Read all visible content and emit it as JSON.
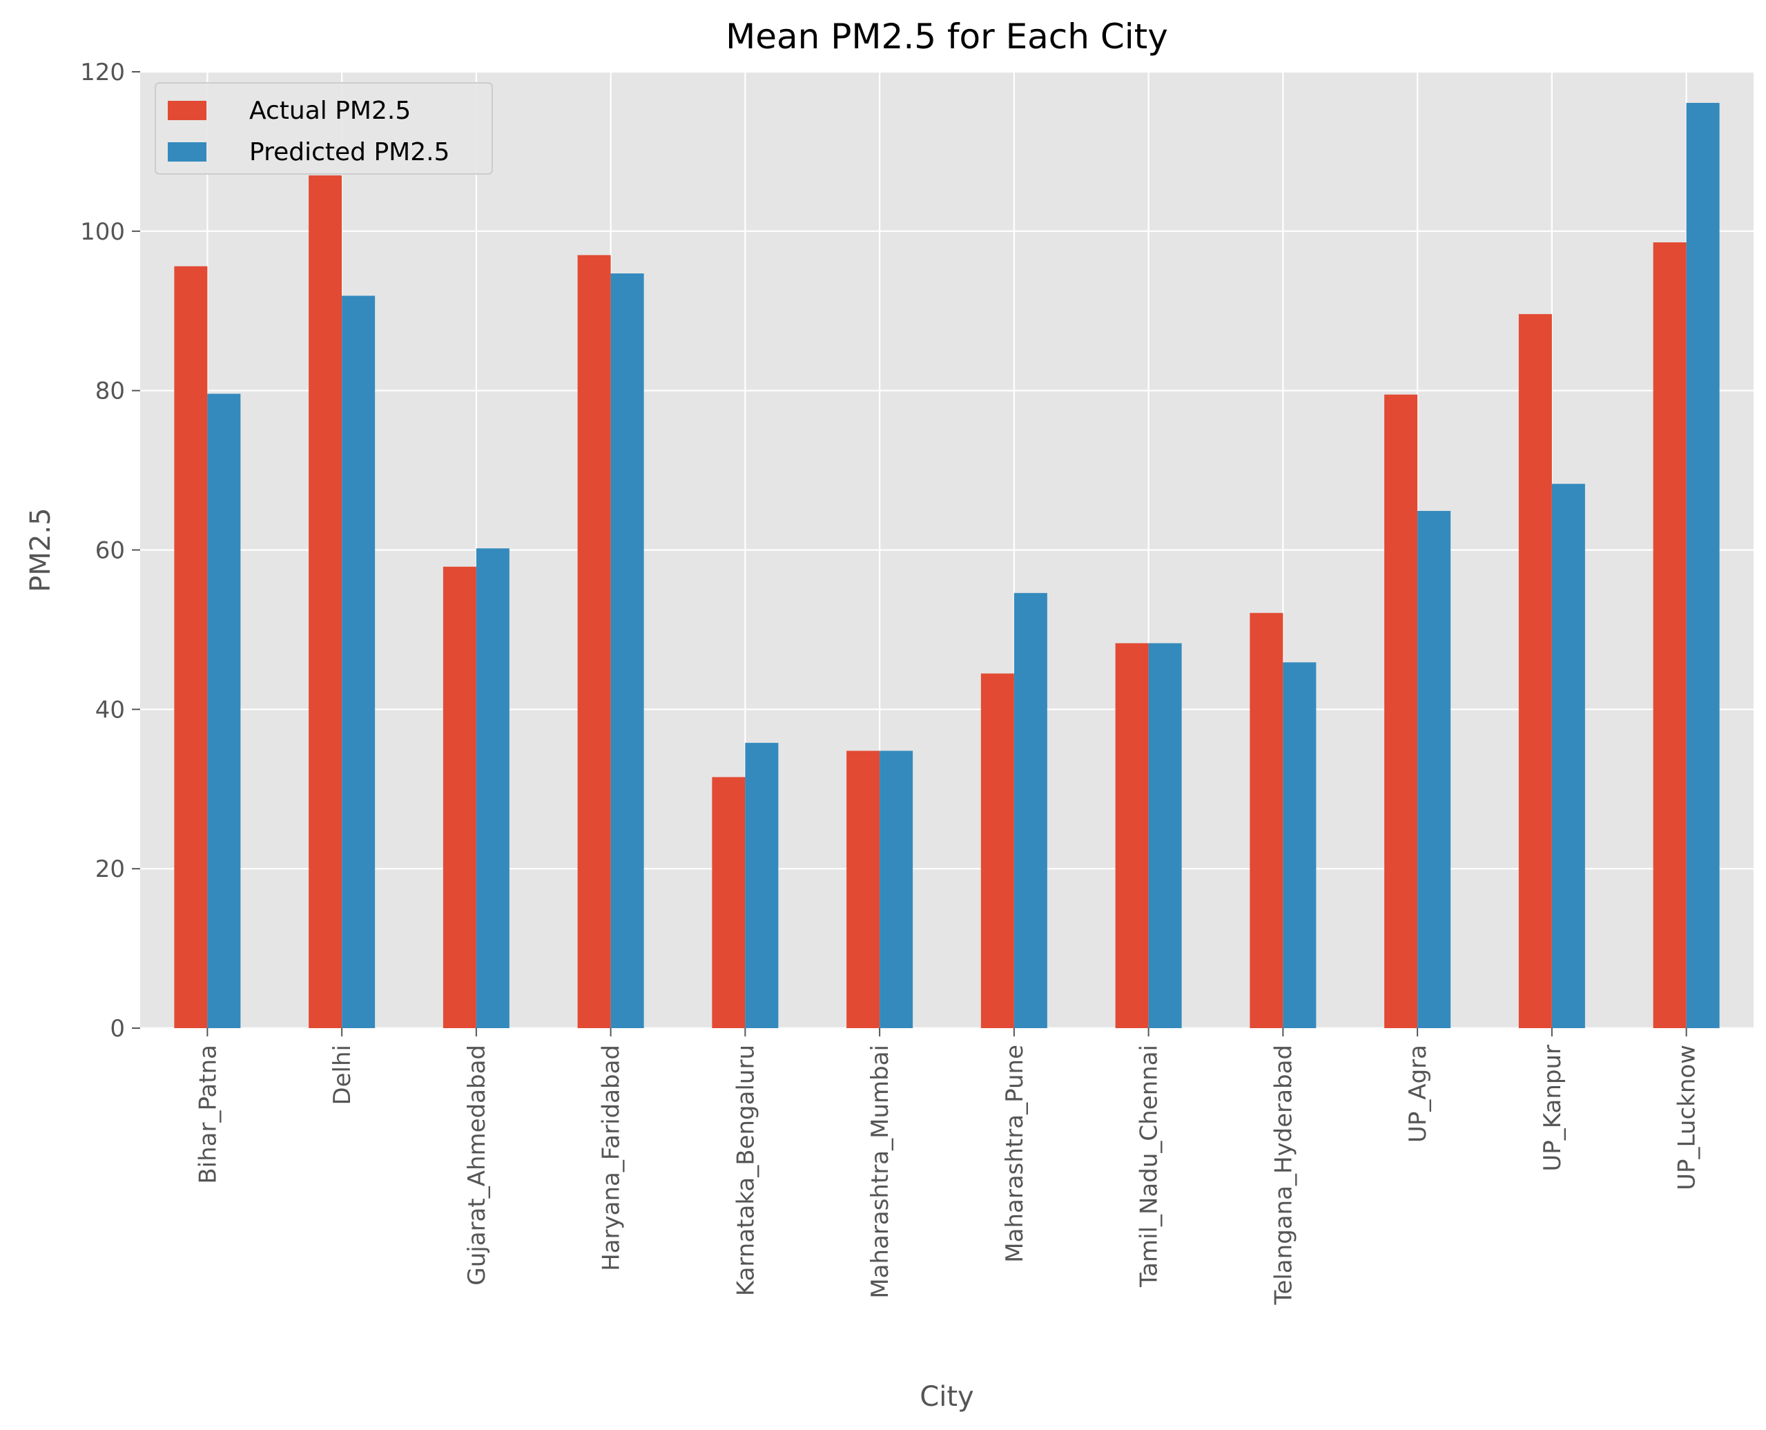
{
  "chart_data": {
    "type": "bar",
    "title": "Mean PM2.5 for Each City",
    "xlabel": "City",
    "ylabel": "PM2.5",
    "ylim": [
      0,
      120
    ],
    "yticks": [
      0,
      20,
      40,
      60,
      80,
      100,
      120
    ],
    "grid": true,
    "legend_position": "top-left",
    "categories": [
      "Bihar_Patna",
      "Delhi",
      "Gujarat_Ahmedabad",
      "Haryana_Faridabad",
      "Karnataka_Bengaluru",
      "Maharashtra_Mumbai",
      "Maharashtra_Pune",
      "Tamil_Nadu_Chennai",
      "Telangana_Hyderabad",
      "UP_Agra",
      "UP_Kanpur",
      "UP_Lucknow"
    ],
    "series": [
      {
        "name": "Actual PM2.5",
        "color": "#E24A33",
        "values": [
          95.6,
          107.0,
          57.9,
          97.0,
          31.5,
          34.8,
          44.5,
          48.3,
          52.1,
          79.5,
          89.6,
          98.6
        ]
      },
      {
        "name": "Predicted PM2.5",
        "color": "#348ABD",
        "values": [
          79.6,
          91.9,
          60.2,
          94.7,
          35.8,
          34.8,
          54.6,
          48.3,
          45.9,
          64.9,
          68.3,
          116.1
        ]
      }
    ]
  },
  "colors": {
    "plot_background": "#E5E5E5",
    "grid": "#FFFFFF"
  }
}
